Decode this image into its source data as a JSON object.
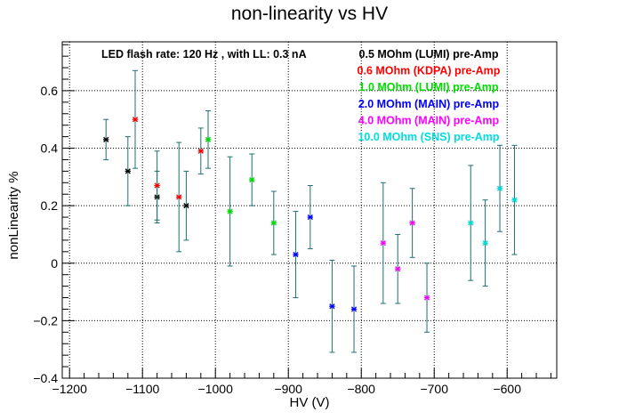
{
  "chart_data": {
    "type": "scatter",
    "title": "non-linearity vs HV",
    "xlabel": "HV (V)",
    "ylabel": "nonLinearity %",
    "xlim": [
      -1210,
      -532
    ],
    "ylim": [
      -0.4,
      0.77
    ],
    "x_ticks": [
      -1200,
      -1100,
      -1000,
      -900,
      -800,
      -700,
      -600
    ],
    "y_ticks": [
      -0.4,
      -0.2,
      0,
      0.2,
      0.4,
      0.6
    ],
    "x_tick_labels": [
      "−1200",
      "−1100",
      "−1000",
      "−900",
      "−800",
      "−700",
      "−600"
    ],
    "y_tick_labels": [
      "−0.4",
      "−0.2",
      "0",
      "0.2",
      "0.4",
      "0.6"
    ],
    "grid": true,
    "legend_position": "top-right",
    "annotation": "LED flash rate: 120 Hz , with LL: 0.3 nA",
    "error_bar_color": "#1f6f6f",
    "series": [
      {
        "name": "0.5 MOhm (LUMI) pre-Amp",
        "color": "#000000",
        "x": [
          -1150,
          -1120,
          -1080,
          -1040
        ],
        "y": [
          0.43,
          0.32,
          0.23,
          0.2
        ],
        "yerr": [
          0.07,
          0.12,
          0.09,
          0.12
        ]
      },
      {
        "name": "0.6 MOhm (KDPA) pre-Amp",
        "color": "#ff0000",
        "x": [
          -1110,
          -1080,
          -1050,
          -1020
        ],
        "y": [
          0.5,
          0.27,
          0.23,
          0.39
        ],
        "yerr": [
          0.17,
          0.12,
          0.19,
          0.08
        ]
      },
      {
        "name": "1.0 MOhm (LUMI) pre-Amp",
        "color": "#00dd00",
        "x": [
          -1010,
          -980,
          -950,
          -920
        ],
        "y": [
          0.43,
          0.18,
          0.29,
          0.14
        ],
        "yerr": [
          0.1,
          0.19,
          0.09,
          0.11
        ]
      },
      {
        "name": "2.0 MOhm (MAIN) pre-Amp",
        "color": "#0000ff",
        "x": [
          -890,
          -870,
          -840,
          -810
        ],
        "y": [
          0.03,
          0.16,
          -0.15,
          -0.16
        ],
        "yerr": [
          0.15,
          0.11,
          0.16,
          0.15
        ]
      },
      {
        "name": "4.0 MOhm (MAIN) pre-Amp",
        "color": "#ff00ff",
        "x": [
          -770,
          -750,
          -730,
          -710
        ],
        "y": [
          0.07,
          -0.02,
          0.14,
          -0.12
        ],
        "yerr": [
          0.21,
          0.12,
          0.12,
          0.12
        ]
      },
      {
        "name": "10.0 MOhm (SNS) pre-Amp",
        "color": "#00dddd",
        "x": [
          -650,
          -630,
          -610,
          -590
        ],
        "y": [
          0.14,
          0.07,
          0.26,
          0.22
        ],
        "yerr": [
          0.2,
          0.15,
          0.15,
          0.19
        ]
      }
    ]
  }
}
